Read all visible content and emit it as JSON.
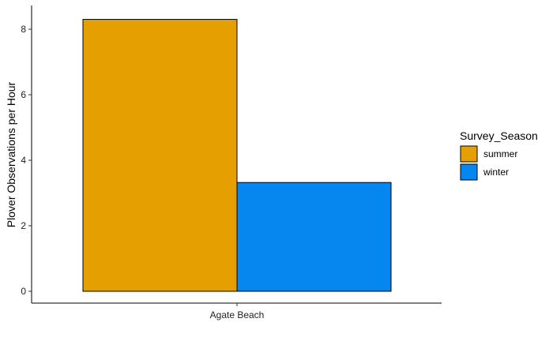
{
  "chart_data": {
    "type": "bar",
    "categories": [
      "Agate Beach"
    ],
    "series": [
      {
        "name": "summer",
        "values": [
          8.3
        ],
        "color": "#E69F00"
      },
      {
        "name": "winter",
        "values": [
          3.32
        ],
        "color": "#0687F0"
      }
    ],
    "ylabel": "Plover Observations per Hour",
    "xlabel": "",
    "ylim": [
      0,
      8.7
    ],
    "yticks": [
      0,
      2,
      4,
      6,
      8
    ],
    "legend": {
      "title": "Survey_Season",
      "position": "right"
    },
    "grid": false
  }
}
